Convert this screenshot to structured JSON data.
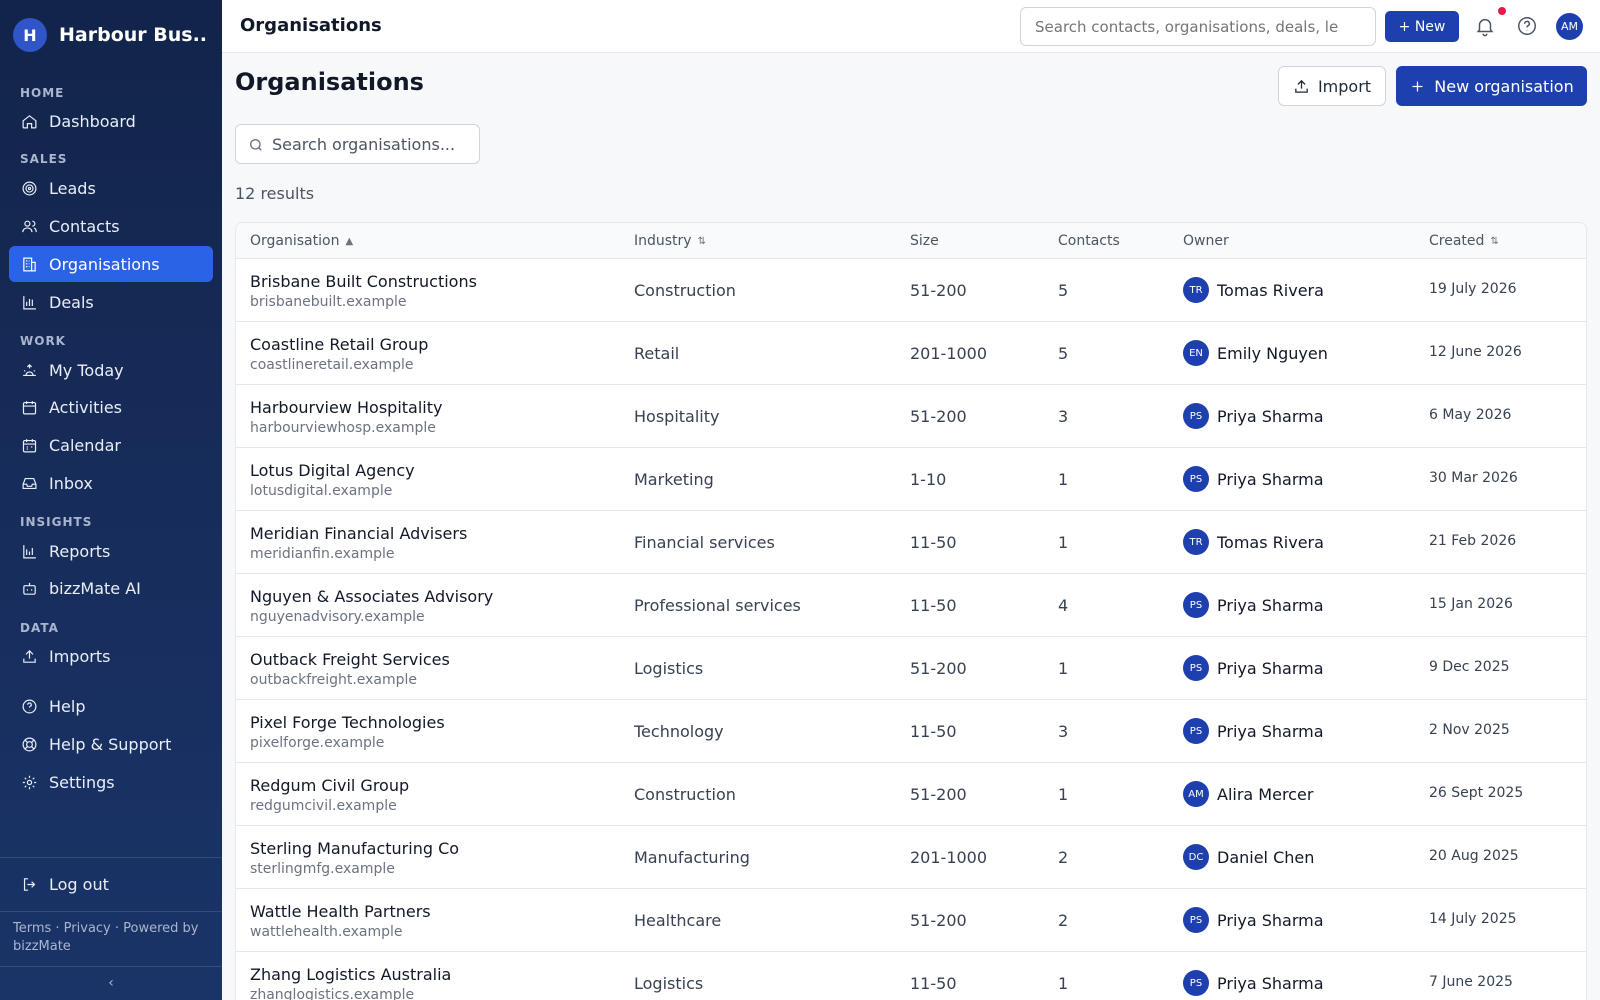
{
  "app": {
    "brand_initial": "H",
    "brand_name": "Harbour Bus..."
  },
  "sidebar": {
    "sections": [
      {
        "label": "HOME"
      },
      {
        "label": "SALES"
      },
      {
        "label": "WORK"
      },
      {
        "label": "INSIGHTS"
      },
      {
        "label": "DATA"
      }
    ],
    "items": [
      {
        "label": "Dashboard",
        "icon": "home-icon"
      },
      {
        "label": "Leads",
        "icon": "target-icon"
      },
      {
        "label": "Contacts",
        "icon": "users-icon"
      },
      {
        "label": "Organisations",
        "icon": "building-icon",
        "active": true
      },
      {
        "label": "Deals",
        "icon": "bar-chart-icon"
      },
      {
        "label": "My Today",
        "icon": "sunrise-icon"
      },
      {
        "label": "Activities",
        "icon": "calendar-icon"
      },
      {
        "label": "Calendar",
        "icon": "calendar-icon"
      },
      {
        "label": "Inbox",
        "icon": "inbox-icon"
      },
      {
        "label": "Reports",
        "icon": "report-icon"
      },
      {
        "label": "bizzMate AI",
        "icon": "bot-icon"
      },
      {
        "label": "Imports",
        "icon": "upload-icon"
      },
      {
        "label": "Help",
        "icon": "help-icon"
      },
      {
        "label": "Help & Support",
        "icon": "lifebuoy-icon"
      },
      {
        "label": "Settings",
        "icon": "gear-icon"
      },
      {
        "label": "Log out",
        "icon": "logout-icon"
      }
    ],
    "footer": "Terms · Privacy · Powered by bizzMate",
    "collapse_glyph": "‹"
  },
  "topbar": {
    "title": "Organisations",
    "search_placeholder": "Search contacts, organisations, deals, le",
    "new_label": "+ New",
    "avatar": "AM"
  },
  "main": {
    "title": "Organisations",
    "import_label": "Import",
    "new_org_label": "New organisation",
    "search_placeholder": "Search organisations...",
    "results": "12 results"
  },
  "table": {
    "headers": {
      "organisation": "Organisation",
      "industry": "Industry",
      "size": "Size",
      "contacts": "Contacts",
      "owner": "Owner",
      "created": "Created"
    },
    "rows": [
      {
        "name": "Brisbane Built Constructions",
        "domain": "brisbanebuilt.example",
        "industry": "Construction",
        "size": "51-200",
        "contacts": "5",
        "owner_initials": "TR",
        "owner": "Tomas Rivera",
        "created": "19 July 2026"
      },
      {
        "name": "Coastline Retail Group",
        "domain": "coastlineretail.example",
        "industry": "Retail",
        "size": "201-1000",
        "contacts": "5",
        "owner_initials": "EN",
        "owner": "Emily Nguyen",
        "created": "12 June 2026"
      },
      {
        "name": "Harbourview Hospitality",
        "domain": "harbourviewhosp.example",
        "industry": "Hospitality",
        "size": "51-200",
        "contacts": "3",
        "owner_initials": "PS",
        "owner": "Priya Sharma",
        "created": "6 May 2026"
      },
      {
        "name": "Lotus Digital Agency",
        "domain": "lotusdigital.example",
        "industry": "Marketing",
        "size": "1-10",
        "contacts": "1",
        "owner_initials": "PS",
        "owner": "Priya Sharma",
        "created": "30 Mar 2026"
      },
      {
        "name": "Meridian Financial Advisers",
        "domain": "meridianfin.example",
        "industry": "Financial services",
        "size": "11-50",
        "contacts": "1",
        "owner_initials": "TR",
        "owner": "Tomas Rivera",
        "created": "21 Feb 2026"
      },
      {
        "name": "Nguyen & Associates Advisory",
        "domain": "nguyenadvisory.example",
        "industry": "Professional services",
        "size": "11-50",
        "contacts": "4",
        "owner_initials": "PS",
        "owner": "Priya Sharma",
        "created": "15 Jan 2026"
      },
      {
        "name": "Outback Freight Services",
        "domain": "outbackfreight.example",
        "industry": "Logistics",
        "size": "51-200",
        "contacts": "1",
        "owner_initials": "PS",
        "owner": "Priya Sharma",
        "created": "9 Dec 2025"
      },
      {
        "name": "Pixel Forge Technologies",
        "domain": "pixelforge.example",
        "industry": "Technology",
        "size": "11-50",
        "contacts": "3",
        "owner_initials": "PS",
        "owner": "Priya Sharma",
        "created": "2 Nov 2025"
      },
      {
        "name": "Redgum Civil Group",
        "domain": "redgumcivil.example",
        "industry": "Construction",
        "size": "51-200",
        "contacts": "1",
        "owner_initials": "AM",
        "owner": "Alira Mercer",
        "created": "26 Sept 2025"
      },
      {
        "name": "Sterling Manufacturing Co",
        "domain": "sterlingmfg.example",
        "industry": "Manufacturing",
        "size": "201-1000",
        "contacts": "2",
        "owner_initials": "DC",
        "owner": "Daniel Chen",
        "created": "20 Aug 2025"
      },
      {
        "name": "Wattle Health Partners",
        "domain": "wattlehealth.example",
        "industry": "Healthcare",
        "size": "51-200",
        "contacts": "2",
        "owner_initials": "PS",
        "owner": "Priya Sharma",
        "created": "14 July 2025"
      },
      {
        "name": "Zhang Logistics Australia",
        "domain": "zhanglogistics.example",
        "industry": "Logistics",
        "size": "11-50",
        "contacts": "1",
        "owner_initials": "PS",
        "owner": "Priya Sharma",
        "created": "7 June 2025"
      }
    ]
  },
  "colors": {
    "accent": "#1e3fae",
    "active_nav": "#2a63e6",
    "sidebar": "#172d5c",
    "notification": "#e11d48"
  }
}
